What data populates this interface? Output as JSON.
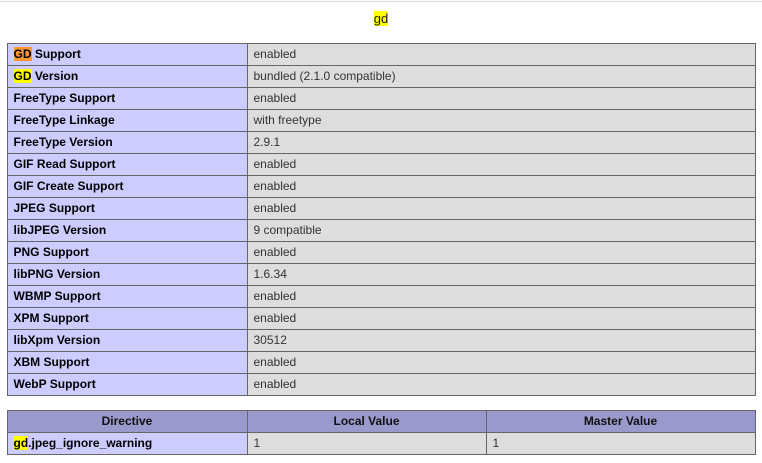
{
  "page": {
    "title": {
      "text": "gd",
      "highlight": "match"
    }
  },
  "find_highlight": {
    "match_color": "#ffff00",
    "active_color": "#ff9632"
  },
  "colors": {
    "row_label_bg": "#ccccff",
    "row_value_bg": "#dddddd",
    "header_bg": "#9999cc",
    "table_border": "#666666",
    "top_divider": "#d9d9d9"
  },
  "info_table": {
    "rows": [
      {
        "label": [
          {
            "text": "GD",
            "hl": "active"
          },
          {
            "text": " Support"
          }
        ],
        "value": "enabled"
      },
      {
        "label": [
          {
            "text": "GD",
            "hl": "match"
          },
          {
            "text": " Version"
          }
        ],
        "value": "bundled (2.1.0 compatible)"
      },
      {
        "label": [
          {
            "text": "FreeType Support"
          }
        ],
        "value": "enabled"
      },
      {
        "label": [
          {
            "text": "FreeType Linkage"
          }
        ],
        "value": "with freetype"
      },
      {
        "label": [
          {
            "text": "FreeType Version"
          }
        ],
        "value": "2.9.1"
      },
      {
        "label": [
          {
            "text": "GIF Read Support"
          }
        ],
        "value": "enabled"
      },
      {
        "label": [
          {
            "text": "GIF Create Support"
          }
        ],
        "value": "enabled"
      },
      {
        "label": [
          {
            "text": "JPEG Support"
          }
        ],
        "value": "enabled"
      },
      {
        "label": [
          {
            "text": "libJPEG Version"
          }
        ],
        "value": "9 compatible"
      },
      {
        "label": [
          {
            "text": "PNG Support"
          }
        ],
        "value": "enabled"
      },
      {
        "label": [
          {
            "text": "libPNG Version"
          }
        ],
        "value": "1.6.34"
      },
      {
        "label": [
          {
            "text": "WBMP Support"
          }
        ],
        "value": "enabled"
      },
      {
        "label": [
          {
            "text": "XPM Support"
          }
        ],
        "value": "enabled"
      },
      {
        "label": [
          {
            "text": "libXpm Version"
          }
        ],
        "value": "30512"
      },
      {
        "label": [
          {
            "text": "XBM Support"
          }
        ],
        "value": "enabled"
      },
      {
        "label": [
          {
            "text": "WebP Support"
          }
        ],
        "value": "enabled"
      }
    ]
  },
  "directive_table": {
    "headers": [
      "Directive",
      "Local Value",
      "Master Value"
    ],
    "rows": [
      {
        "directive": [
          {
            "text": "gd",
            "hl": "match"
          },
          {
            "text": ".jpeg_ignore_warning"
          }
        ],
        "local_value": "1",
        "master_value": "1"
      }
    ]
  }
}
